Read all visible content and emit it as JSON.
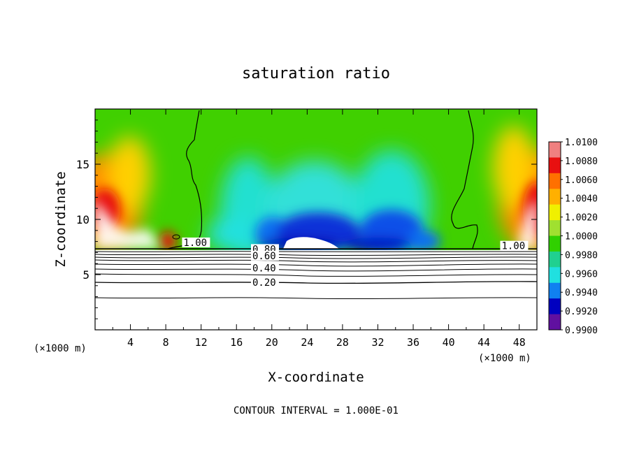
{
  "chart_data": {
    "type": "heatmap",
    "title": "saturation ratio",
    "xlabel": "X-coordinate",
    "ylabel": "Z-coordinate",
    "x_unit_left": "(×1000 m)",
    "x_unit_right": "(×1000 m)",
    "footer": "CONTOUR INTERVAL = 1.000E-01",
    "xlim": [
      0,
      50
    ],
    "ylim": [
      0,
      20
    ],
    "x_ticks": [
      "4",
      "8",
      "12",
      "16",
      "20",
      "24",
      "28",
      "32",
      "36",
      "40",
      "44",
      "48"
    ],
    "y_ticks": [
      "5",
      "10",
      "15"
    ],
    "colorbar_ticks": [
      "1.0100",
      "1.0080",
      "1.0060",
      "1.0040",
      "1.0020",
      "1.0000",
      "0.9980",
      "0.9960",
      "0.9940",
      "0.9920",
      "0.9900"
    ],
    "colorbar_colors": [
      "#f08080",
      "#e81010",
      "#ff7000",
      "#ffb000",
      "#f0f000",
      "#a0e030",
      "#30d000",
      "#20d090",
      "#20e0e0",
      "#1080f0",
      "#0000c0",
      "#6010a0"
    ],
    "contour_labels": [
      {
        "text": "1.00",
        "x": 10.0,
        "z": 7.6
      },
      {
        "text": "1.00",
        "x": 46.0,
        "z": 7.3
      },
      {
        "text": "0.80",
        "x": 17.8,
        "z": 7.0
      },
      {
        "text": "0.60",
        "x": 17.8,
        "z": 6.4
      },
      {
        "text": "0.40",
        "x": 17.8,
        "z": 5.3
      },
      {
        "text": "0.20",
        "x": 17.8,
        "z": 4.0
      }
    ],
    "cloud_base_z": 7.4
  }
}
